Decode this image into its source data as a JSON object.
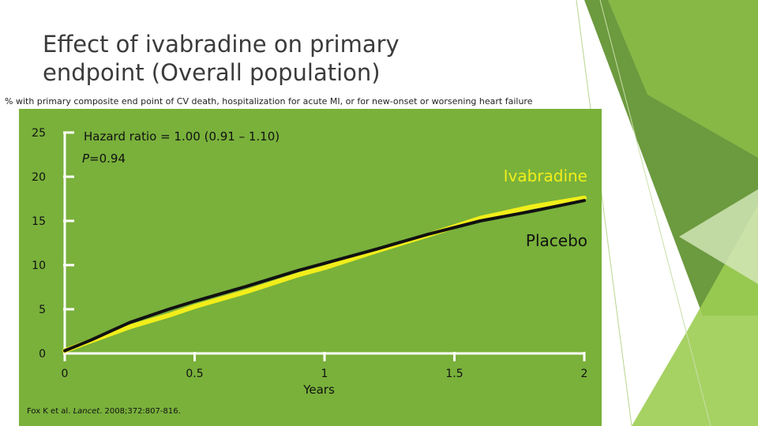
{
  "slide": {
    "title_line1": "Effect of ivabradine on primary",
    "title_line2": "endpoint (Overall population)",
    "subtitle": "% with primary composite end point of CV death, hospitalization for acute MI, or for new-onset or worsening heart failure",
    "citation_pre": "Fox K et al. ",
    "citation_journal": "Lancet",
    "citation_post": ". 2008;372:807-816."
  },
  "colors": {
    "panel_bg": "#79b13b",
    "ivabradine": "#f2ee1a",
    "placebo": "#111111",
    "deco_dark": "#5c8f2a",
    "deco_light": "#9ccd52"
  },
  "chart_data": {
    "type": "line",
    "xlabel": "Years",
    "ylabel": "",
    "xlim": [
      0,
      2
    ],
    "ylim": [
      0,
      25
    ],
    "xticks": [
      0,
      0.5,
      1,
      1.5,
      2
    ],
    "xtick_labels": [
      "0",
      "0.5",
      "1",
      "1.5",
      "2"
    ],
    "yticks": [
      0,
      5,
      10,
      15,
      20,
      25
    ],
    "ytick_labels": [
      "0",
      "5",
      "10",
      "15",
      "20",
      "25"
    ],
    "annotations": {
      "hazard": "Hazard ratio = 1.00 (0.91 – 1.10)",
      "p_label": "P",
      "p_value": "=0.94"
    },
    "series": [
      {
        "name": "Ivabradine",
        "x": [
          0,
          0.1,
          0.25,
          0.4,
          0.5,
          0.7,
          0.9,
          1.0,
          1.2,
          1.4,
          1.6,
          1.8,
          2.0
        ],
        "y": [
          0.3,
          1.4,
          3.0,
          4.3,
          5.3,
          7.0,
          8.9,
          9.7,
          11.6,
          13.4,
          15.3,
          16.6,
          17.6
        ]
      },
      {
        "name": "Placebo",
        "x": [
          0,
          0.1,
          0.25,
          0.4,
          0.5,
          0.7,
          0.9,
          1.0,
          1.2,
          1.4,
          1.6,
          1.8,
          2.0
        ],
        "y": [
          0.3,
          1.5,
          3.5,
          5.0,
          5.9,
          7.6,
          9.4,
          10.2,
          11.8,
          13.5,
          15.0,
          16.1,
          17.3
        ]
      }
    ]
  }
}
